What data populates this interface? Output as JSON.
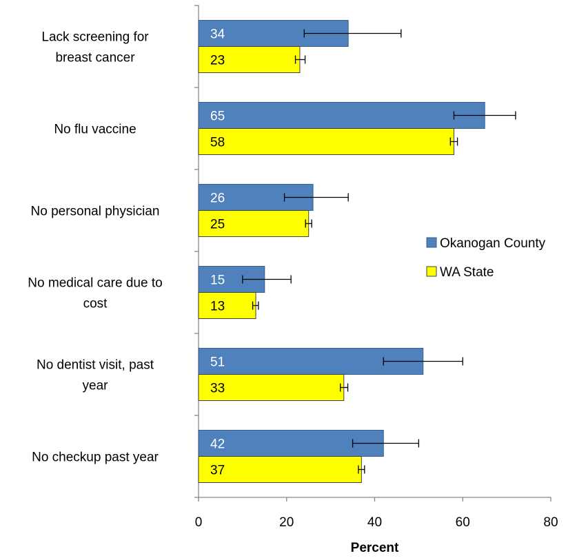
{
  "chart_data": {
    "type": "bar",
    "orientation": "horizontal",
    "categories": [
      [
        "Lack screening for",
        "breast cancer"
      ],
      [
        "No flu vaccine"
      ],
      [
        "No personal physician"
      ],
      [
        "No medical care due to",
        "cost"
      ],
      [
        "No dentist visit, past",
        "year"
      ],
      [
        "No checkup past year"
      ]
    ],
    "series": [
      {
        "name": "Okanogan County",
        "color": "#4F81BD",
        "label_color": "#ffffff",
        "values": [
          34,
          65,
          26,
          15,
          51,
          42
        ],
        "error_low": [
          24,
          58,
          19.5,
          10,
          42,
          35
        ],
        "error_high": [
          46,
          72,
          34,
          21,
          60,
          50
        ]
      },
      {
        "name": "WA State",
        "color": "#FFFF00",
        "label_color": "#000000",
        "values": [
          23,
          58,
          25,
          13,
          33,
          37
        ],
        "error_low": [
          22,
          57.2,
          24.3,
          12.3,
          32.2,
          36.3
        ],
        "error_high": [
          24.2,
          58.8,
          25.7,
          13.6,
          33.9,
          37.7
        ]
      }
    ],
    "xlabel": "Percent",
    "xlim": [
      0,
      80
    ],
    "xticks": [
      0,
      20,
      40,
      60,
      80
    ],
    "grid": false,
    "legend_position": "right"
  }
}
